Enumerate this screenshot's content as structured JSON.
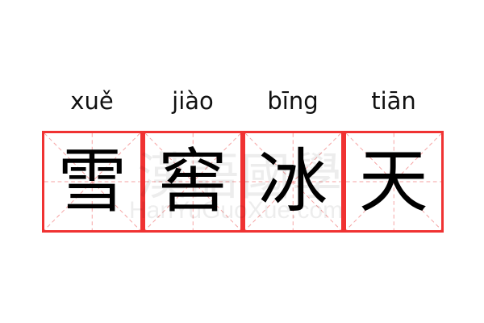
{
  "characters": [
    {
      "hanzi": "雪",
      "pinyin": "xuě"
    },
    {
      "hanzi": "窖",
      "pinyin": "jiào"
    },
    {
      "hanzi": "冰",
      "pinyin": "bīng"
    },
    {
      "hanzi": "天",
      "pinyin": "tiān"
    }
  ],
  "watermark": {
    "logo": "漢語國學",
    "site": "HanYuGuoXue.com"
  },
  "colors": {
    "border": "#f03232",
    "guide": "#f5a0a0"
  }
}
